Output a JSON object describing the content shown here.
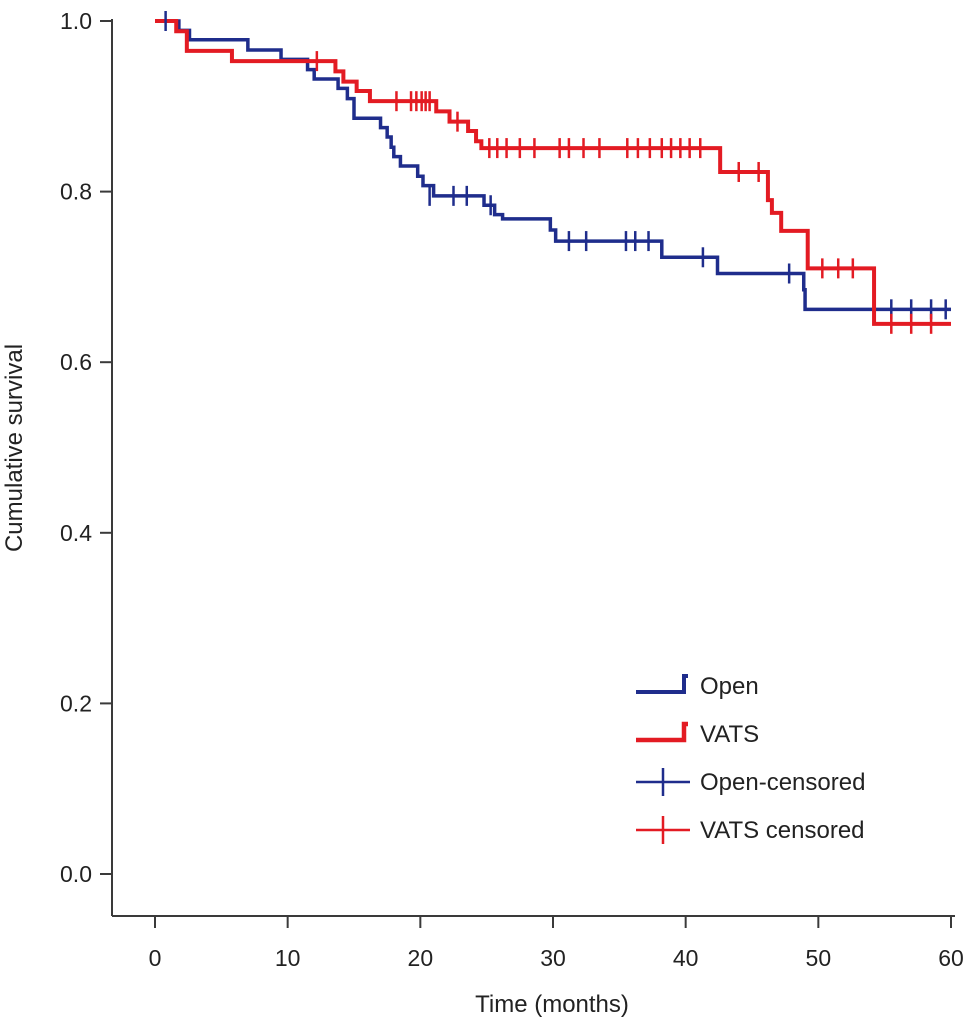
{
  "chart_data": {
    "type": "line",
    "xlabel": "Time (months)",
    "ylabel": "Cumulative survival",
    "xlim": [
      0,
      60
    ],
    "ylim": [
      0,
      1
    ],
    "x_ticks": [
      "0",
      "10",
      "20",
      "30",
      "40",
      "50",
      "60"
    ],
    "y_ticks": [
      "0.0",
      "0.2",
      "0.4",
      "0.6",
      "0.8",
      "1.0"
    ],
    "grid": false,
    "legend_position": "bottom-right",
    "series": [
      {
        "name": "Open",
        "color": "#1f2d8c",
        "step": true,
        "x": [
          0,
          1.8,
          2.6,
          7,
          9.5,
          11.5,
          12,
          13.8,
          14.5,
          15,
          17,
          17.5,
          17.8,
          18,
          18.5,
          19.8,
          20.2,
          21,
          21.3,
          24.8,
          25.6,
          26.2,
          29.8,
          30.2,
          37.6,
          38.2,
          42,
          42.4,
          48.6,
          48.9,
          49,
          54,
          60
        ],
        "y": [
          1.0,
          0.989,
          0.978,
          0.966,
          0.955,
          0.943,
          0.932,
          0.921,
          0.909,
          0.886,
          0.875,
          0.864,
          0.852,
          0.841,
          0.83,
          0.818,
          0.807,
          0.795,
          0.795,
          0.784,
          0.773,
          0.768,
          0.755,
          0.742,
          0.742,
          0.723,
          0.723,
          0.704,
          0.704,
          0.685,
          0.662,
          0.662,
          0.662
        ]
      },
      {
        "name": "VATS",
        "color": "#e31b23",
        "step": true,
        "x": [
          0,
          1.6,
          2.4,
          5.8,
          12,
          13.6,
          14.2,
          15.2,
          16.2,
          18.7,
          21.2,
          22.2,
          23.6,
          24.2,
          24.6,
          42.2,
          42.6,
          45.8,
          46.2,
          46.5,
          47.2,
          48.8,
          49.2,
          53.8,
          54.2,
          60
        ],
        "y": [
          1.0,
          0.988,
          0.965,
          0.953,
          0.953,
          0.941,
          0.929,
          0.918,
          0.906,
          0.906,
          0.894,
          0.882,
          0.871,
          0.859,
          0.851,
          0.851,
          0.823,
          0.823,
          0.79,
          0.775,
          0.754,
          0.754,
          0.71,
          0.71,
          0.645,
          0.645
        ]
      }
    ],
    "censored": [
      {
        "name": "Open-censored",
        "color": "#1f2d8c",
        "x": [
          0.8,
          20.7,
          22.5,
          23.5,
          25.3,
          31.2,
          32.5,
          35.5,
          36.2,
          37.2,
          41.3,
          47.8,
          55.5,
          57,
          58.5,
          59.6
        ],
        "y": [
          1.0,
          0.795,
          0.795,
          0.795,
          0.784,
          0.742,
          0.742,
          0.742,
          0.742,
          0.742,
          0.723,
          0.704,
          0.662,
          0.662,
          0.662,
          0.662
        ]
      },
      {
        "name": "VATS censored",
        "color": "#e31b23",
        "x": [
          12.2,
          18.2,
          19.3,
          19.7,
          20.1,
          20.4,
          20.7,
          22.8,
          25.2,
          25.8,
          26.5,
          27.5,
          28.6,
          30.5,
          31.2,
          32.3,
          33.5,
          35.6,
          36.4,
          37.3,
          38.2,
          38.9,
          39.6,
          40.3,
          41.1,
          44,
          45.5,
          50.3,
          51.5,
          52.6,
          55.5,
          57,
          58.5
        ],
        "y": [
          0.953,
          0.906,
          0.906,
          0.906,
          0.906,
          0.906,
          0.906,
          0.882,
          0.851,
          0.851,
          0.851,
          0.851,
          0.851,
          0.851,
          0.851,
          0.851,
          0.851,
          0.851,
          0.851,
          0.851,
          0.851,
          0.851,
          0.851,
          0.851,
          0.851,
          0.823,
          0.823,
          0.71,
          0.71,
          0.71,
          0.645,
          0.645,
          0.645
        ]
      }
    ],
    "legend": [
      {
        "label": "Open",
        "kind": "line",
        "color": "#1f2d8c"
      },
      {
        "label": "VATS",
        "kind": "line",
        "color": "#e31b23"
      },
      {
        "label": "Open-censored",
        "kind": "censor",
        "color": "#1f2d8c"
      },
      {
        "label": "VATS censored",
        "kind": "censor",
        "color": "#e31b23"
      }
    ]
  }
}
